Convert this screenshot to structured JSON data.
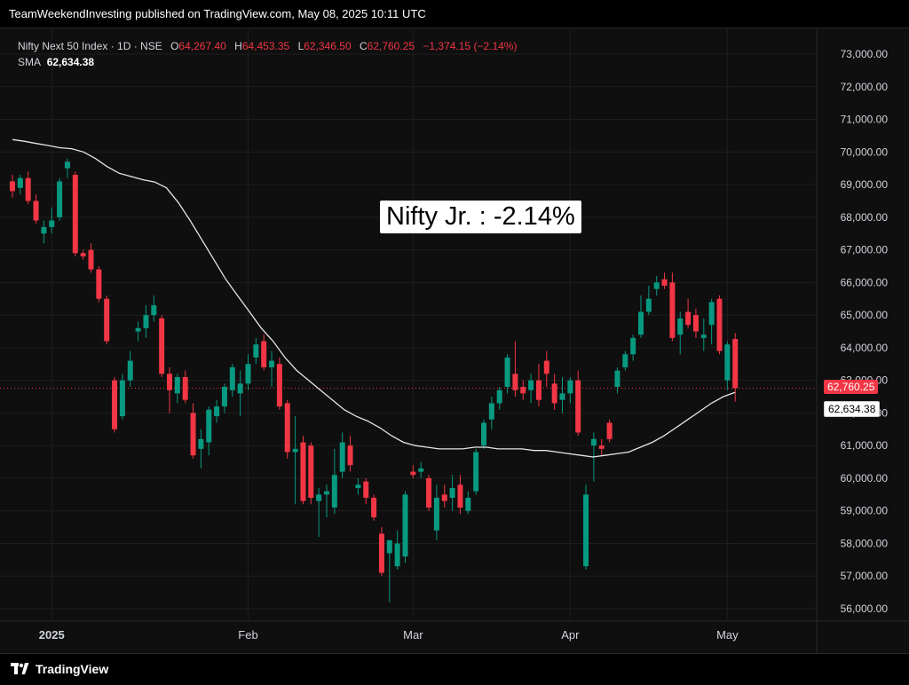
{
  "header": {
    "publish_line": "TeamWeekendInvesting published on TradingView.com, May 08, 2025 10:11 UTC"
  },
  "legend": {
    "symbol": "Nifty Next 50 Index · 1D · NSE",
    "o_label": "O",
    "o_value": "64,267.40",
    "h_label": "H",
    "h_value": "64,453.35",
    "l_label": "L",
    "l_value": "62,346.50",
    "c_label": "C",
    "c_value": "62,760.25",
    "change": "−1,374.15 (−2.14%)",
    "sma_label": "SMA",
    "sma_value": "62,634.38"
  },
  "annotation": {
    "text": "Nifty Jr. : -2.14%"
  },
  "price_tags": {
    "close": "62,760.25",
    "sma": "62,634.38"
  },
  "footer": {
    "brand": "TradingView"
  },
  "colors": {
    "up": "#089981",
    "down": "#f23645",
    "sma": "#e6e6e6",
    "grid": "#1e1e1e"
  },
  "chart_data": {
    "type": "candlestick",
    "y_axis": {
      "range": [
        55700,
        73500
      ],
      "ticks": [
        56000,
        57000,
        58000,
        59000,
        60000,
        61000,
        62000,
        63000,
        64000,
        65000,
        66000,
        67000,
        68000,
        69000,
        70000,
        71000,
        72000,
        73000
      ],
      "tick_labels": [
        "56,000.00",
        "57,000.00",
        "58,000.00",
        "59,000.00",
        "60,000.00",
        "61,000.00",
        "62,000.00",
        "63,000.00",
        "64,000.00",
        "65,000.00",
        "66,000.00",
        "67,000.00",
        "68,000.00",
        "69,000.00",
        "70,000.00",
        "71,000.00",
        "72,000.00",
        "73,000.00"
      ]
    },
    "x_axis": {
      "labels": [
        {
          "text": "2025",
          "index": 5
        },
        {
          "text": "Feb",
          "index": 30
        },
        {
          "text": "Mar",
          "index": 51
        },
        {
          "text": "Apr",
          "index": 71
        },
        {
          "text": "May",
          "index": 91
        }
      ]
    },
    "last_close": 62760.25,
    "candles": [
      {
        "o": 69100,
        "h": 69300,
        "l": 68600,
        "c": 68800
      },
      {
        "o": 68900,
        "h": 69300,
        "l": 68700,
        "c": 69200
      },
      {
        "o": 69200,
        "h": 69400,
        "l": 68400,
        "c": 68500
      },
      {
        "o": 68500,
        "h": 68700,
        "l": 67800,
        "c": 67900
      },
      {
        "o": 67500,
        "h": 67900,
        "l": 67200,
        "c": 67700
      },
      {
        "o": 67700,
        "h": 68300,
        "l": 67500,
        "c": 67900
      },
      {
        "o": 68000,
        "h": 69200,
        "l": 67900,
        "c": 69100
      },
      {
        "o": 69500,
        "h": 69800,
        "l": 69200,
        "c": 69700
      },
      {
        "o": 69300,
        "h": 69400,
        "l": 66800,
        "c": 66900
      },
      {
        "o": 66900,
        "h": 67000,
        "l": 66700,
        "c": 66800
      },
      {
        "o": 67000,
        "h": 67200,
        "l": 66300,
        "c": 66400
      },
      {
        "o": 66400,
        "h": 66500,
        "l": 65400,
        "c": 65500
      },
      {
        "o": 65500,
        "h": 65600,
        "l": 64100,
        "c": 64200
      },
      {
        "o": 63000,
        "h": 63100,
        "l": 61400,
        "c": 61500
      },
      {
        "o": 61900,
        "h": 63200,
        "l": 61800,
        "c": 63000
      },
      {
        "o": 63000,
        "h": 63900,
        "l": 62800,
        "c": 63600
      },
      {
        "o": 64500,
        "h": 64800,
        "l": 64200,
        "c": 64600
      },
      {
        "o": 64600,
        "h": 65300,
        "l": 64300,
        "c": 65000
      },
      {
        "o": 65000,
        "h": 65600,
        "l": 64800,
        "c": 65300
      },
      {
        "o": 64900,
        "h": 65000,
        "l": 63100,
        "c": 63200
      },
      {
        "o": 63200,
        "h": 63400,
        "l": 62000,
        "c": 62700
      },
      {
        "o": 62600,
        "h": 63200,
        "l": 62300,
        "c": 63100
      },
      {
        "o": 63100,
        "h": 63300,
        "l": 62300,
        "c": 62400
      },
      {
        "o": 62000,
        "h": 62300,
        "l": 60600,
        "c": 60700
      },
      {
        "o": 60900,
        "h": 61500,
        "l": 60300,
        "c": 61200
      },
      {
        "o": 61100,
        "h": 62200,
        "l": 60700,
        "c": 62100
      },
      {
        "o": 61900,
        "h": 62400,
        "l": 61700,
        "c": 62200
      },
      {
        "o": 62200,
        "h": 62900,
        "l": 62000,
        "c": 62800
      },
      {
        "o": 62700,
        "h": 63500,
        "l": 62500,
        "c": 63400
      },
      {
        "o": 62600,
        "h": 63300,
        "l": 61900,
        "c": 62900
      },
      {
        "o": 62900,
        "h": 63800,
        "l": 62700,
        "c": 63500
      },
      {
        "o": 63700,
        "h": 64300,
        "l": 63500,
        "c": 64100
      },
      {
        "o": 64200,
        "h": 64400,
        "l": 63300,
        "c": 63400
      },
      {
        "o": 63400,
        "h": 63900,
        "l": 62800,
        "c": 63600
      },
      {
        "o": 63500,
        "h": 63700,
        "l": 62100,
        "c": 62200
      },
      {
        "o": 62300,
        "h": 62400,
        "l": 60600,
        "c": 60800
      },
      {
        "o": 60800,
        "h": 61900,
        "l": 59200,
        "c": 60900
      },
      {
        "o": 61100,
        "h": 61300,
        "l": 59200,
        "c": 59300
      },
      {
        "o": 61000,
        "h": 61100,
        "l": 59200,
        "c": 59400
      },
      {
        "o": 59300,
        "h": 59700,
        "l": 58200,
        "c": 59500
      },
      {
        "o": 59500,
        "h": 59800,
        "l": 58800,
        "c": 59600
      },
      {
        "o": 59100,
        "h": 60900,
        "l": 58900,
        "c": 60100
      },
      {
        "o": 60200,
        "h": 61400,
        "l": 60000,
        "c": 61100
      },
      {
        "o": 61000,
        "h": 61300,
        "l": 60200,
        "c": 60400
      },
      {
        "o": 59700,
        "h": 60000,
        "l": 59500,
        "c": 59800
      },
      {
        "o": 59900,
        "h": 60000,
        "l": 59200,
        "c": 59400
      },
      {
        "o": 59400,
        "h": 59500,
        "l": 58700,
        "c": 58800
      },
      {
        "o": 58300,
        "h": 58500,
        "l": 57000,
        "c": 57100
      },
      {
        "o": 57700,
        "h": 58100,
        "l": 56200,
        "c": 58100
      },
      {
        "o": 57300,
        "h": 58400,
        "l": 57200,
        "c": 58000
      },
      {
        "o": 57600,
        "h": 59600,
        "l": 57400,
        "c": 59500
      },
      {
        "o": 60200,
        "h": 60400,
        "l": 60000,
        "c": 60100
      },
      {
        "o": 60200,
        "h": 60500,
        "l": 60000,
        "c": 60300
      },
      {
        "o": 60000,
        "h": 60100,
        "l": 59000,
        "c": 59100
      },
      {
        "o": 58400,
        "h": 59800,
        "l": 58100,
        "c": 59400
      },
      {
        "o": 59500,
        "h": 59800,
        "l": 59100,
        "c": 59300
      },
      {
        "o": 59400,
        "h": 60100,
        "l": 59000,
        "c": 59700
      },
      {
        "o": 59800,
        "h": 60100,
        "l": 58900,
        "c": 59100
      },
      {
        "o": 59000,
        "h": 59600,
        "l": 58900,
        "c": 59400
      },
      {
        "o": 59600,
        "h": 60900,
        "l": 59500,
        "c": 60800
      },
      {
        "o": 61000,
        "h": 61800,
        "l": 60900,
        "c": 61700
      },
      {
        "o": 61800,
        "h": 62500,
        "l": 61500,
        "c": 62300
      },
      {
        "o": 62300,
        "h": 62800,
        "l": 62100,
        "c": 62700
      },
      {
        "o": 62800,
        "h": 63800,
        "l": 62600,
        "c": 63700
      },
      {
        "o": 63200,
        "h": 64200,
        "l": 62500,
        "c": 62700
      },
      {
        "o": 62800,
        "h": 63000,
        "l": 62400,
        "c": 62600
      },
      {
        "o": 62700,
        "h": 63200,
        "l": 62300,
        "c": 63000
      },
      {
        "o": 63000,
        "h": 63500,
        "l": 62200,
        "c": 62400
      },
      {
        "o": 63600,
        "h": 63900,
        "l": 62800,
        "c": 63200
      },
      {
        "o": 62900,
        "h": 63200,
        "l": 62100,
        "c": 62300
      },
      {
        "o": 62400,
        "h": 63100,
        "l": 62000,
        "c": 62600
      },
      {
        "o": 62600,
        "h": 63100,
        "l": 62300,
        "c": 63000
      },
      {
        "o": 63000,
        "h": 63300,
        "l": 61300,
        "c": 61400
      },
      {
        "o": 57300,
        "h": 59800,
        "l": 57200,
        "c": 59500
      },
      {
        "o": 61000,
        "h": 61400,
        "l": 59900,
        "c": 61200
      },
      {
        "o": 61000,
        "h": 61200,
        "l": 60700,
        "c": 60900
      },
      {
        "o": 61700,
        "h": 61800,
        "l": 61100,
        "c": 61200
      },
      {
        "o": 62800,
        "h": 63400,
        "l": 62600,
        "c": 63300
      },
      {
        "o": 63400,
        "h": 63900,
        "l": 63300,
        "c": 63800
      },
      {
        "o": 63800,
        "h": 64400,
        "l": 63600,
        "c": 64300
      },
      {
        "o": 64400,
        "h": 65600,
        "l": 64300,
        "c": 65100
      },
      {
        "o": 65100,
        "h": 65900,
        "l": 65000,
        "c": 65500
      },
      {
        "o": 65800,
        "h": 66200,
        "l": 65600,
        "c": 66000
      },
      {
        "o": 66100,
        "h": 66300,
        "l": 65800,
        "c": 65900
      },
      {
        "o": 66000,
        "h": 66300,
        "l": 64200,
        "c": 64300
      },
      {
        "o": 64400,
        "h": 65100,
        "l": 63800,
        "c": 64900
      },
      {
        "o": 65100,
        "h": 65500,
        "l": 64600,
        "c": 64700
      },
      {
        "o": 65000,
        "h": 65200,
        "l": 64300,
        "c": 64500
      },
      {
        "o": 64300,
        "h": 64900,
        "l": 63900,
        "c": 64400
      },
      {
        "o": 64700,
        "h": 65500,
        "l": 64100,
        "c": 65400
      },
      {
        "o": 65500,
        "h": 65600,
        "l": 63800,
        "c": 63900
      },
      {
        "o": 63000,
        "h": 64200,
        "l": 62700,
        "c": 64100
      },
      {
        "o": 64267.4,
        "h": 64453.35,
        "l": 62346.5,
        "c": 62760.25
      }
    ],
    "sma": [
      70380,
      70330,
      70260,
      70200,
      70130,
      70100,
      70000,
      69800,
      69550,
      69350,
      69250,
      69150,
      69080,
      68900,
      68450,
      67900,
      67300,
      66700,
      66100,
      65600,
      65100,
      64600,
      64200,
      63700,
      63300,
      63000,
      62700,
      62400,
      62100,
      61900,
      61750,
      61550,
      61300,
      61100,
      61000,
      60950,
      60900,
      60900,
      60900,
      60950,
      60950,
      60900,
      60900,
      60900,
      60850,
      60850,
      60800,
      60750,
      60700,
      60650,
      60700,
      60750,
      60800,
      60950,
      61100,
      61300,
      61550,
      61800,
      62050,
      62300,
      62500,
      62634.38
    ]
  }
}
